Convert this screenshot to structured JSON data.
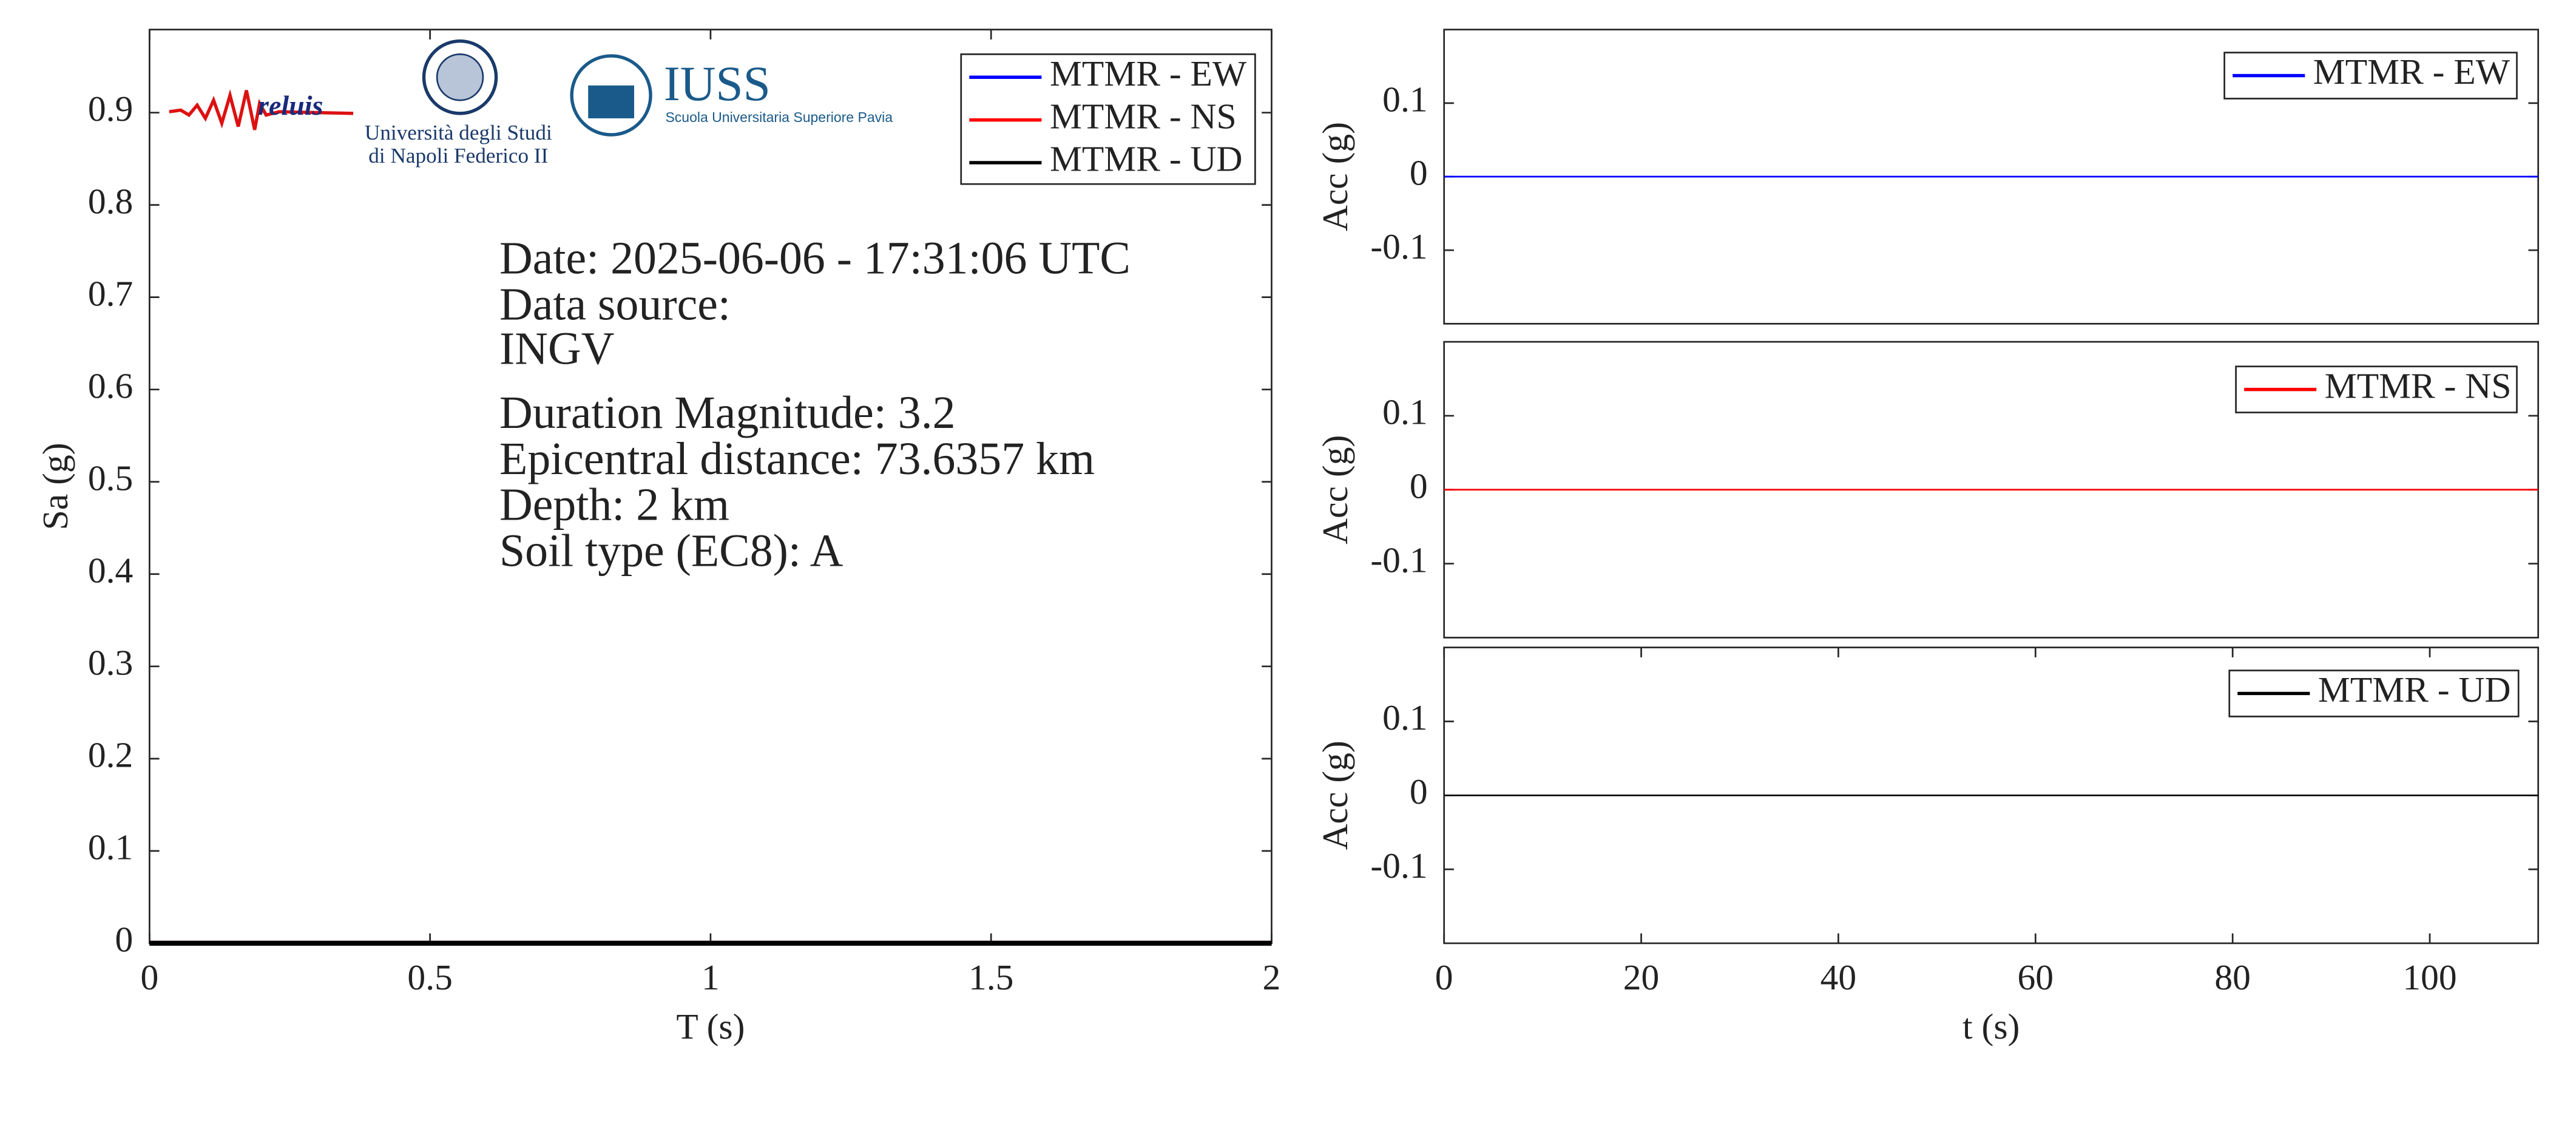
{
  "logos": {
    "reluis": "reluis",
    "unina_line1": "Università degli Studi",
    "unina_line2": "di Napoli Federico II",
    "iuss": "IUSS",
    "iuss_sub": "Scuola Universitaria Superiore Pavia"
  },
  "chart_data": [
    {
      "type": "line",
      "xlabel": "T (s)",
      "ylabel": "Sa (g)",
      "xlim": [
        0,
        2
      ],
      "ylim": [
        0,
        0.99
      ],
      "xticks": [
        0,
        0.5,
        1,
        1.5,
        2
      ],
      "yticks": [
        0,
        0.1,
        0.2,
        0.3,
        0.4,
        0.5,
        0.6,
        0.7,
        0.8,
        0.9
      ],
      "legend": "upper right",
      "x": [
        0,
        2
      ],
      "series": [
        {
          "name": "MTMR - EW",
          "color": "#0000ff",
          "values": [
            0,
            0
          ]
        },
        {
          "name": "MTMR - NS",
          "color": "#ff0000",
          "values": [
            0,
            0
          ]
        },
        {
          "name": "MTMR - UD",
          "color": "#000000",
          "values": [
            0,
            0
          ]
        }
      ],
      "annotations": [
        "Date: 2025-06-06 - 17:31:06 UTC",
        "Data source:",
        "INGV",
        "Duration Magnitude: 3.2",
        "Epicentral distance: 73.6357 km",
        "Depth: 2 km",
        "Soil type (EC8): A"
      ]
    },
    {
      "type": "line",
      "ylabel": "Acc (g)",
      "xlim": [
        0,
        111
      ],
      "ylim": [
        -0.2,
        0.2
      ],
      "yticks": [
        -0.1,
        0,
        0.1
      ],
      "legend": "upper right",
      "x": [
        0,
        111
      ],
      "series": [
        {
          "name": "MTMR - EW",
          "color": "#0000ff",
          "values": [
            0,
            0
          ]
        }
      ]
    },
    {
      "type": "line",
      "ylabel": "Acc (g)",
      "xlim": [
        0,
        111
      ],
      "ylim": [
        -0.2,
        0.2
      ],
      "yticks": [
        -0.1,
        0,
        0.1
      ],
      "legend": "upper right",
      "x": [
        0,
        111
      ],
      "series": [
        {
          "name": "MTMR - NS",
          "color": "#ff0000",
          "values": [
            0,
            0
          ]
        }
      ]
    },
    {
      "type": "line",
      "xlabel": "t (s)",
      "ylabel": "Acc (g)",
      "xlim": [
        0,
        111
      ],
      "ylim": [
        -0.2,
        0.2
      ],
      "xticks": [
        0,
        20,
        40,
        60,
        80,
        100
      ],
      "yticks": [
        -0.1,
        0,
        0.1
      ],
      "legend": "upper right",
      "x": [
        0,
        111
      ],
      "series": [
        {
          "name": "MTMR - UD",
          "color": "#000000",
          "values": [
            0,
            0
          ]
        }
      ]
    }
  ]
}
